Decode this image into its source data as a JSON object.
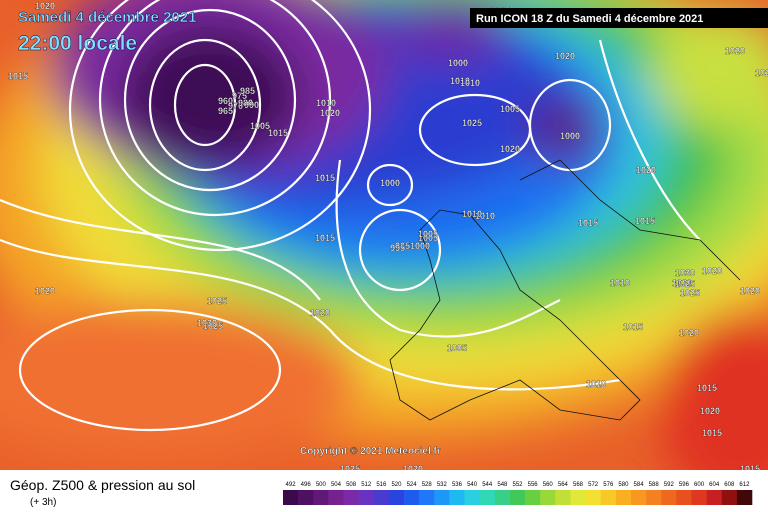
{
  "header": {
    "date": "Samedi 4 décembre 2021",
    "time": "22:00 locale",
    "run": "Run ICON 18 Z du Samedi 4 décembre 2021"
  },
  "footer": {
    "title": "Géop. Z500 & pression au sol",
    "step": "(+ 3h)",
    "copyright": "Copyright © 2021 Meteociel.fr"
  },
  "legend": {
    "values": [
      492,
      496,
      500,
      504,
      508,
      512,
      516,
      520,
      524,
      528,
      532,
      536,
      540,
      544,
      548,
      552,
      556,
      560,
      564,
      568,
      572,
      576,
      580,
      584,
      588,
      592,
      596,
      600,
      604,
      608,
      612
    ],
    "colors": [
      "#3a0a4a",
      "#4e1060",
      "#621878",
      "#76228e",
      "#7a2aa8",
      "#6a32c0",
      "#4a3ad0",
      "#2a44e0",
      "#1e5cf0",
      "#1e78f8",
      "#1e98f8",
      "#20b8f0",
      "#28d0e0",
      "#30d8b8",
      "#38d088",
      "#40c858",
      "#68d040",
      "#98d838",
      "#c0e038",
      "#e0e838",
      "#f4e030",
      "#f8c828",
      "#f8b020",
      "#f89820",
      "#f48020",
      "#f06820",
      "#e85020",
      "#e03820",
      "#c82020",
      "#901010",
      "#400808"
    ]
  },
  "isobars": [
    "1020",
    "1015",
    "1020",
    "995",
    "1000",
    "1010",
    "1005",
    "1020",
    "1025",
    "1005",
    "1000",
    "1020",
    "1015",
    "1020",
    "1015",
    "1000",
    "1015",
    "1010",
    "1005",
    "995",
    "1000",
    "1015",
    "1020",
    "1010",
    "1025",
    "1020",
    "1025",
    "1030",
    "1005",
    "1010",
    "1015",
    "1020",
    "1025",
    "1020",
    "1020",
    "1010",
    "1015",
    "1030",
    "1025",
    "1015",
    "1015",
    "1020",
    "1015",
    "1015",
    "1030",
    "1025",
    "1005",
    "960",
    "965",
    "970",
    "975",
    "980",
    "985",
    "990",
    "1010",
    "1010",
    "1025",
    "1020",
    "1020"
  ]
}
